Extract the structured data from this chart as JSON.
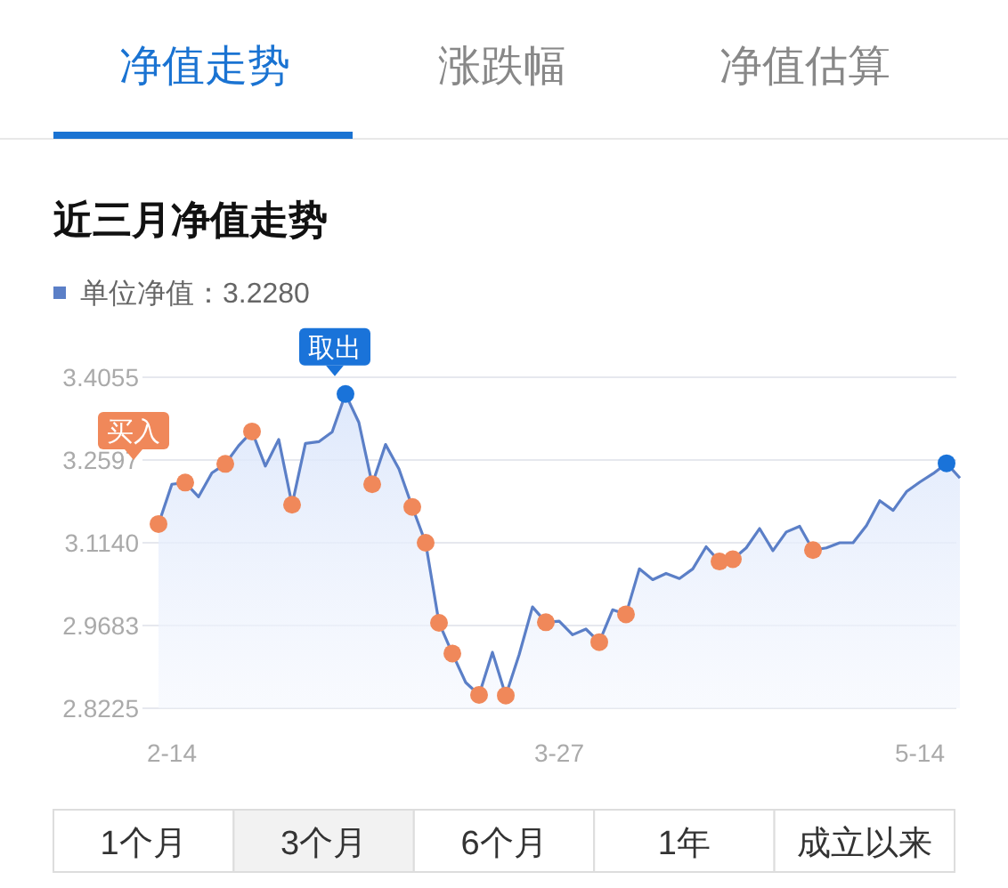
{
  "chart_data": {
    "type": "area",
    "title": "近三月净值走势",
    "annotations": [
      "净值走势",
      "涨跌幅",
      "净值估算",
      "1个月",
      "3个月",
      "6个月",
      "1年",
      "成立以来"
    ],
    "categories": [
      null,
      "2-14",
      null,
      null,
      null,
      null,
      null,
      null,
      null,
      null,
      null,
      null,
      null,
      null,
      null,
      null,
      null,
      null,
      null,
      null,
      null,
      null,
      null,
      null,
      null,
      null,
      null,
      null,
      null,
      null,
      "3-27",
      null,
      null,
      null,
      null,
      null,
      null,
      null,
      null,
      null,
      null,
      null,
      null,
      null,
      null,
      null,
      null,
      null,
      null,
      null,
      null,
      null,
      null,
      null,
      null,
      null,
      null,
      "5-14",
      null,
      null,
      null
    ],
    "ylim": [
      2.8225,
      3.4055
    ],
    "yticks": [
      2.8225,
      2.9683,
      {
        "value": 3.114,
        "label": "3.1140"
      },
      3.2597,
      3.4055
    ],
    "grid": "y",
    "legend": "top left",
    "series": [
      {
        "name": "单位净值：3.2280",
        "color": "#5b7fc7",
        "values": [
          3.147,
          3.217,
          3.22,
          3.195,
          3.237,
          3.253,
          3.285,
          3.31,
          3.249,
          3.296,
          3.181,
          3.289,
          3.292,
          3.309,
          3.376,
          3.326,
          3.217,
          3.287,
          3.244,
          3.177,
          3.114,
          2.973,
          2.919,
          2.868,
          2.846,
          2.921,
          2.845,
          2.917,
          3.001,
          2.974,
          2.976,
          2.952,
          2.962,
          2.939,
          2.996,
          2.988,
          3.068,
          3.049,
          3.06,
          3.051,
          3.068,
          3.107,
          3.081,
          3.085,
          3.105,
          3.139,
          3.1,
          3.133,
          3.143,
          3.101,
          3.105,
          3.114,
          3.114,
          3.144,
          3.188,
          3.171,
          3.204,
          3.221,
          3.236,
          3.254,
          3.228
        ]
      },
      {
        "name": "买入",
        "type": "scatter",
        "marker": "circle",
        "color": "#f0885a",
        "values": [
          3.147,
          null,
          3.22,
          null,
          null,
          3.253,
          null,
          3.31,
          null,
          null,
          3.181,
          null,
          null,
          null,
          null,
          null,
          3.217,
          null,
          null,
          3.177,
          3.114,
          2.973,
          2.919,
          null,
          2.846,
          null,
          2.845,
          null,
          null,
          2.974,
          null,
          null,
          null,
          2.939,
          null,
          2.988,
          null,
          null,
          null,
          null,
          null,
          null,
          3.081,
          3.085,
          null,
          null,
          null,
          null,
          null,
          3.101,
          null,
          null,
          null,
          null,
          null,
          null,
          null,
          null,
          null,
          null,
          null
        ]
      },
      {
        "name": "取出",
        "type": "scatter",
        "marker": "circle",
        "color": "#1a73d9",
        "values": [
          null,
          null,
          null,
          null,
          null,
          null,
          null,
          null,
          null,
          null,
          null,
          null,
          null,
          null,
          3.376,
          null,
          null,
          null,
          null,
          null,
          null,
          null,
          null,
          null,
          null,
          null,
          null,
          null,
          null,
          null,
          null,
          null,
          null,
          null,
          null,
          null,
          null,
          null,
          null,
          null,
          null,
          null,
          null,
          null,
          null,
          null,
          null,
          null,
          null,
          null,
          null,
          null,
          null,
          null,
          null,
          null,
          null,
          null,
          null,
          3.254,
          null
        ]
      }
    ]
  }
}
